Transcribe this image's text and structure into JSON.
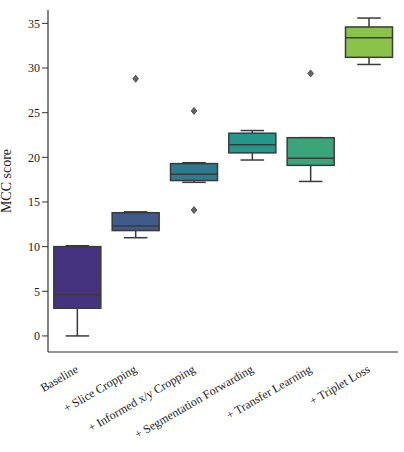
{
  "chart_data": {
    "type": "box",
    "y_label": "MCC score",
    "categories": [
      "Baseline",
      "+ Slice Cropping",
      "+ Informed x/y Cropping",
      "+ Segmentation Forwarding",
      "+ Transfer Learning",
      "+ Triplet Loss"
    ],
    "boxes": [
      {
        "min": 0,
        "q1": 3.1,
        "median": 4.6,
        "q3": 10.0,
        "max": 10.1,
        "outliers": []
      },
      {
        "min": 11.0,
        "q1": 11.8,
        "median": 12.3,
        "q3": 13.8,
        "max": 13.9,
        "outliers": [
          28.8
        ]
      },
      {
        "min": 17.2,
        "q1": 17.4,
        "median": 18.1,
        "q3": 19.3,
        "max": 19.4,
        "outliers": [
          25.2,
          14.1
        ]
      },
      {
        "min": 19.7,
        "q1": 20.5,
        "median": 21.4,
        "q3": 22.7,
        "max": 23.0,
        "outliers": []
      },
      {
        "min": 17.3,
        "q1": 19.1,
        "median": 19.9,
        "q3": 22.2,
        "max": 22.2,
        "outliers": [
          29.4
        ]
      },
      {
        "min": 30.4,
        "q1": 31.2,
        "median": 33.4,
        "q3": 34.6,
        "max": 35.6,
        "outliers": []
      }
    ],
    "colors": [
      "#45337f",
      "#3e5b8c",
      "#2e7a8e",
      "#24978a",
      "#3aa57a",
      "#8bc34a"
    ],
    "ylim": [
      -1.8,
      36.5
    ],
    "yticks": [
      0,
      5,
      10,
      15,
      20,
      25,
      30,
      35
    ],
    "grid": false
  }
}
